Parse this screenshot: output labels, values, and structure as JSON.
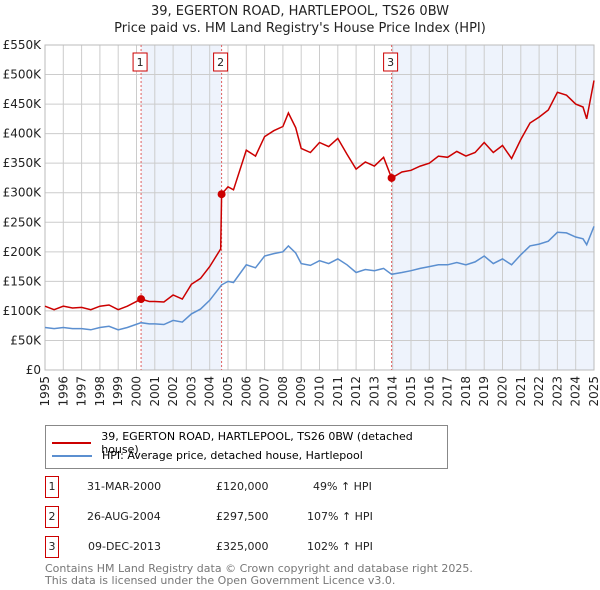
{
  "chart_data": {
    "type": "line",
    "title": "39, EGERTON ROAD, HARTLEPOOL, TS26 0BW",
    "subtitle": "Price paid vs. HM Land Registry's House Price Index (HPI)",
    "ylim": [
      0,
      550000
    ],
    "xlim": [
      1995,
      2025
    ],
    "yticks": [
      0,
      50000,
      100000,
      150000,
      200000,
      250000,
      300000,
      350000,
      400000,
      450000,
      500000,
      550000
    ],
    "ytick_labels": [
      "£0",
      "£50K",
      "£100K",
      "£150K",
      "£200K",
      "£250K",
      "£300K",
      "£350K",
      "£400K",
      "£450K",
      "£500K",
      "£550K"
    ],
    "xticks": [
      1995,
      1996,
      1997,
      1998,
      1999,
      2000,
      2001,
      2002,
      2003,
      2004,
      2005,
      2006,
      2007,
      2008,
      2009,
      2010,
      2011,
      2012,
      2013,
      2014,
      2015,
      2016,
      2017,
      2018,
      2019,
      2020,
      2021,
      2022,
      2023,
      2024,
      2025
    ],
    "grid": true,
    "series": [
      {
        "name": "39, EGERTON ROAD, HARTLEPOOL, TS26 0BW (detached house)",
        "color": "#cc0000",
        "x": [
          1995,
          1995.5,
          1996,
          1996.5,
          1997,
          1997.5,
          1998,
          1998.5,
          1999,
          1999.5,
          2000.25,
          2000.7,
          2001,
          2001.5,
          2002,
          2002.5,
          2003,
          2003.5,
          2004,
          2004.6,
          2004.65,
          2005,
          2005.3,
          2006,
          2006.5,
          2007,
          2007.5,
          2008,
          2008.3,
          2008.7,
          2009,
          2009.5,
          2010,
          2010.5,
          2011,
          2011.5,
          2012,
          2012.5,
          2013,
          2013.5,
          2013.94,
          2014.5,
          2015,
          2015.5,
          2016,
          2016.5,
          2017,
          2017.5,
          2018,
          2018.5,
          2019,
          2019.5,
          2020,
          2020.5,
          2021,
          2021.5,
          2022,
          2022.5,
          2023,
          2023.5,
          2024,
          2024.4,
          2024.6,
          2025
        ],
        "y": [
          108000,
          102000,
          108000,
          105000,
          106000,
          102000,
          108000,
          110000,
          102000,
          108000,
          120000,
          116000,
          116000,
          115000,
          127000,
          120000,
          145000,
          155000,
          175000,
          205000,
          297500,
          310000,
          305000,
          372000,
          362000,
          395000,
          405000,
          412000,
          435000,
          410000,
          375000,
          368000,
          385000,
          378000,
          392000,
          365000,
          340000,
          352000,
          345000,
          360000,
          325000,
          335000,
          338000,
          345000,
          350000,
          362000,
          360000,
          370000,
          362000,
          368000,
          385000,
          368000,
          380000,
          358000,
          390000,
          418000,
          428000,
          440000,
          470000,
          465000,
          450000,
          445000,
          425000,
          490000
        ]
      },
      {
        "name": "HPI: Average price, detached house, Hartlepool",
        "color": "#5b8fd0",
        "x": [
          1995,
          1995.5,
          1996,
          1996.5,
          1997,
          1997.5,
          1998,
          1998.5,
          1999,
          1999.5,
          2000.25,
          2000.7,
          2001,
          2001.5,
          2002,
          2002.5,
          2003,
          2003.5,
          2004,
          2004.65,
          2005,
          2005.3,
          2006,
          2006.5,
          2007,
          2007.5,
          2008,
          2008.3,
          2008.7,
          2009,
          2009.5,
          2010,
          2010.5,
          2011,
          2011.5,
          2012,
          2012.5,
          2013,
          2013.5,
          2013.94,
          2014.5,
          2015,
          2015.5,
          2016,
          2016.5,
          2017,
          2017.5,
          2018,
          2018.5,
          2019,
          2019.5,
          2020,
          2020.5,
          2021,
          2021.5,
          2022,
          2022.5,
          2023,
          2023.5,
          2024,
          2024.4,
          2024.6,
          2025
        ],
        "y": [
          72000,
          70000,
          72000,
          70000,
          70000,
          68000,
          72000,
          74000,
          68000,
          72000,
          80000,
          78000,
          78000,
          77000,
          84000,
          81000,
          95000,
          103000,
          118000,
          144000,
          150000,
          148000,
          178000,
          173000,
          193000,
          197000,
          200000,
          210000,
          198000,
          180000,
          177000,
          185000,
          180000,
          188000,
          178000,
          165000,
          170000,
          168000,
          172000,
          162000,
          165000,
          168000,
          172000,
          175000,
          178000,
          178000,
          182000,
          178000,
          183000,
          193000,
          180000,
          188000,
          178000,
          195000,
          210000,
          213000,
          218000,
          233000,
          232000,
          225000,
          222000,
          212000,
          243000
        ]
      }
    ],
    "markers": [
      {
        "label": "1",
        "x": 2000.25,
        "y": 120000
      },
      {
        "label": "2",
        "x": 2004.65,
        "y": 297500
      },
      {
        "label": "3",
        "x": 2013.94,
        "y": 325000
      }
    ]
  },
  "title": "39, EGERTON ROAD, HARTLEPOOL, TS26 0BW",
  "subtitle": "Price paid vs. HM Land Registry's House Price Index (HPI)",
  "legend": [
    "39, EGERTON ROAD, HARTLEPOOL, TS26 0BW (detached house)",
    "HPI: Average price, detached house, Hartlepool"
  ],
  "sales": [
    {
      "num": "1",
      "date": "31-MAR-2000",
      "price": "£120,000",
      "hpi": "49% ↑ HPI"
    },
    {
      "num": "2",
      "date": "26-AUG-2004",
      "price": "£297,500",
      "hpi": "107% ↑ HPI"
    },
    {
      "num": "3",
      "date": "09-DEC-2013",
      "price": "£325,000",
      "hpi": "102% ↑ HPI"
    }
  ],
  "footer": [
    "Contains HM Land Registry data © Crown copyright and database right 2025.",
    "This data is licensed under the Open Government Licence v3.0."
  ]
}
